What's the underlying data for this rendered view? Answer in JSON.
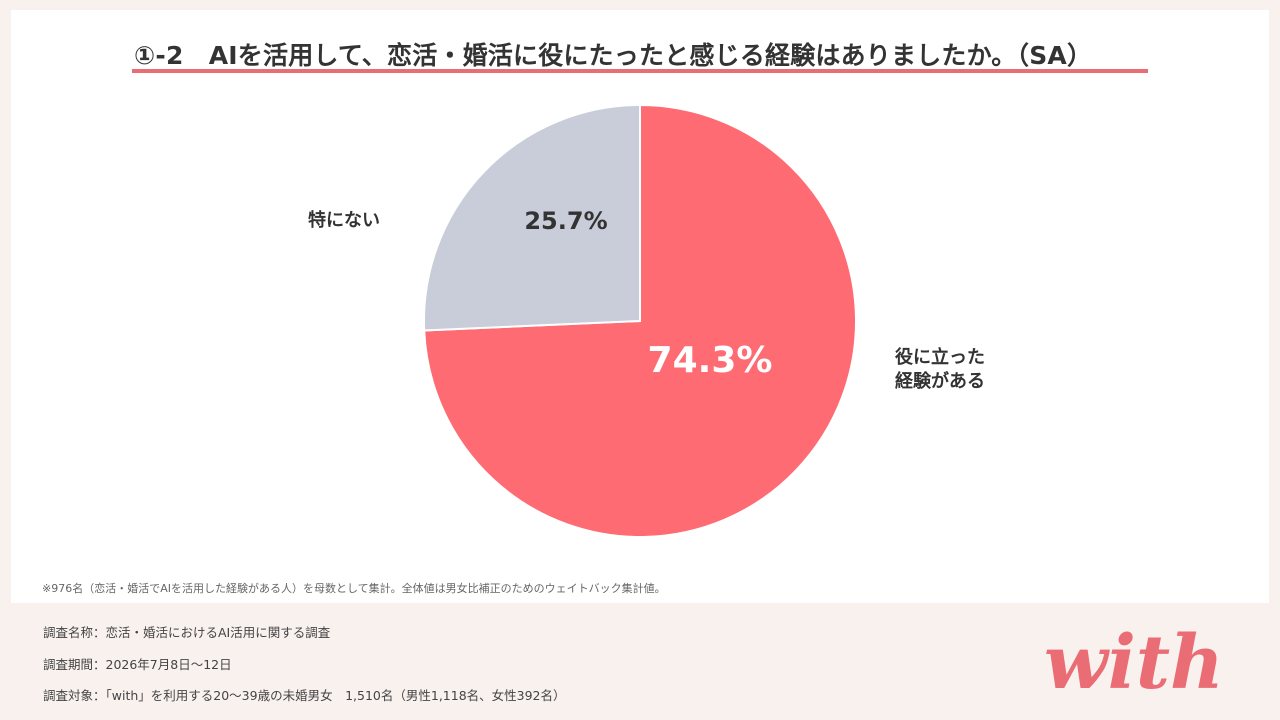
{
  "title": "①-2　AIを活用して、恋活・婚活に役にたったと感じる経験はありましたか。（SA）",
  "chart_data": {
    "type": "pie",
    "title": "①-2　AIを活用して、恋活・婚活に役にたったと感じる経験はありましたか。（SA）",
    "slices": [
      {
        "label_lines": [
          "役に立った",
          "経験がある"
        ],
        "value": 74.3,
        "display": "74.3%",
        "color": "#fe6b73"
      },
      {
        "label_lines": [
          "特にない"
        ],
        "value": 25.7,
        "display": "25.7%",
        "color": "#c8cdd9"
      }
    ],
    "start": "12 o'clock",
    "direction": "clockwise"
  },
  "note": "※976名（恋活・婚活でAIを活用した経験がある人）を母数として集計。全体値は男女比補正のためのウェイトバック集計値。",
  "survey": {
    "name": "調査名称：恋活・婚活におけるAI活用に関する調査",
    "period": "調査期間：2026年7月8日〜12日",
    "target": "調査対象：「with」を利用する20〜39歳の未婚男女　1,510名（男性1,118名、女性392名）"
  },
  "brand": {
    "logo_text": "with",
    "color": "#ea6c74"
  }
}
